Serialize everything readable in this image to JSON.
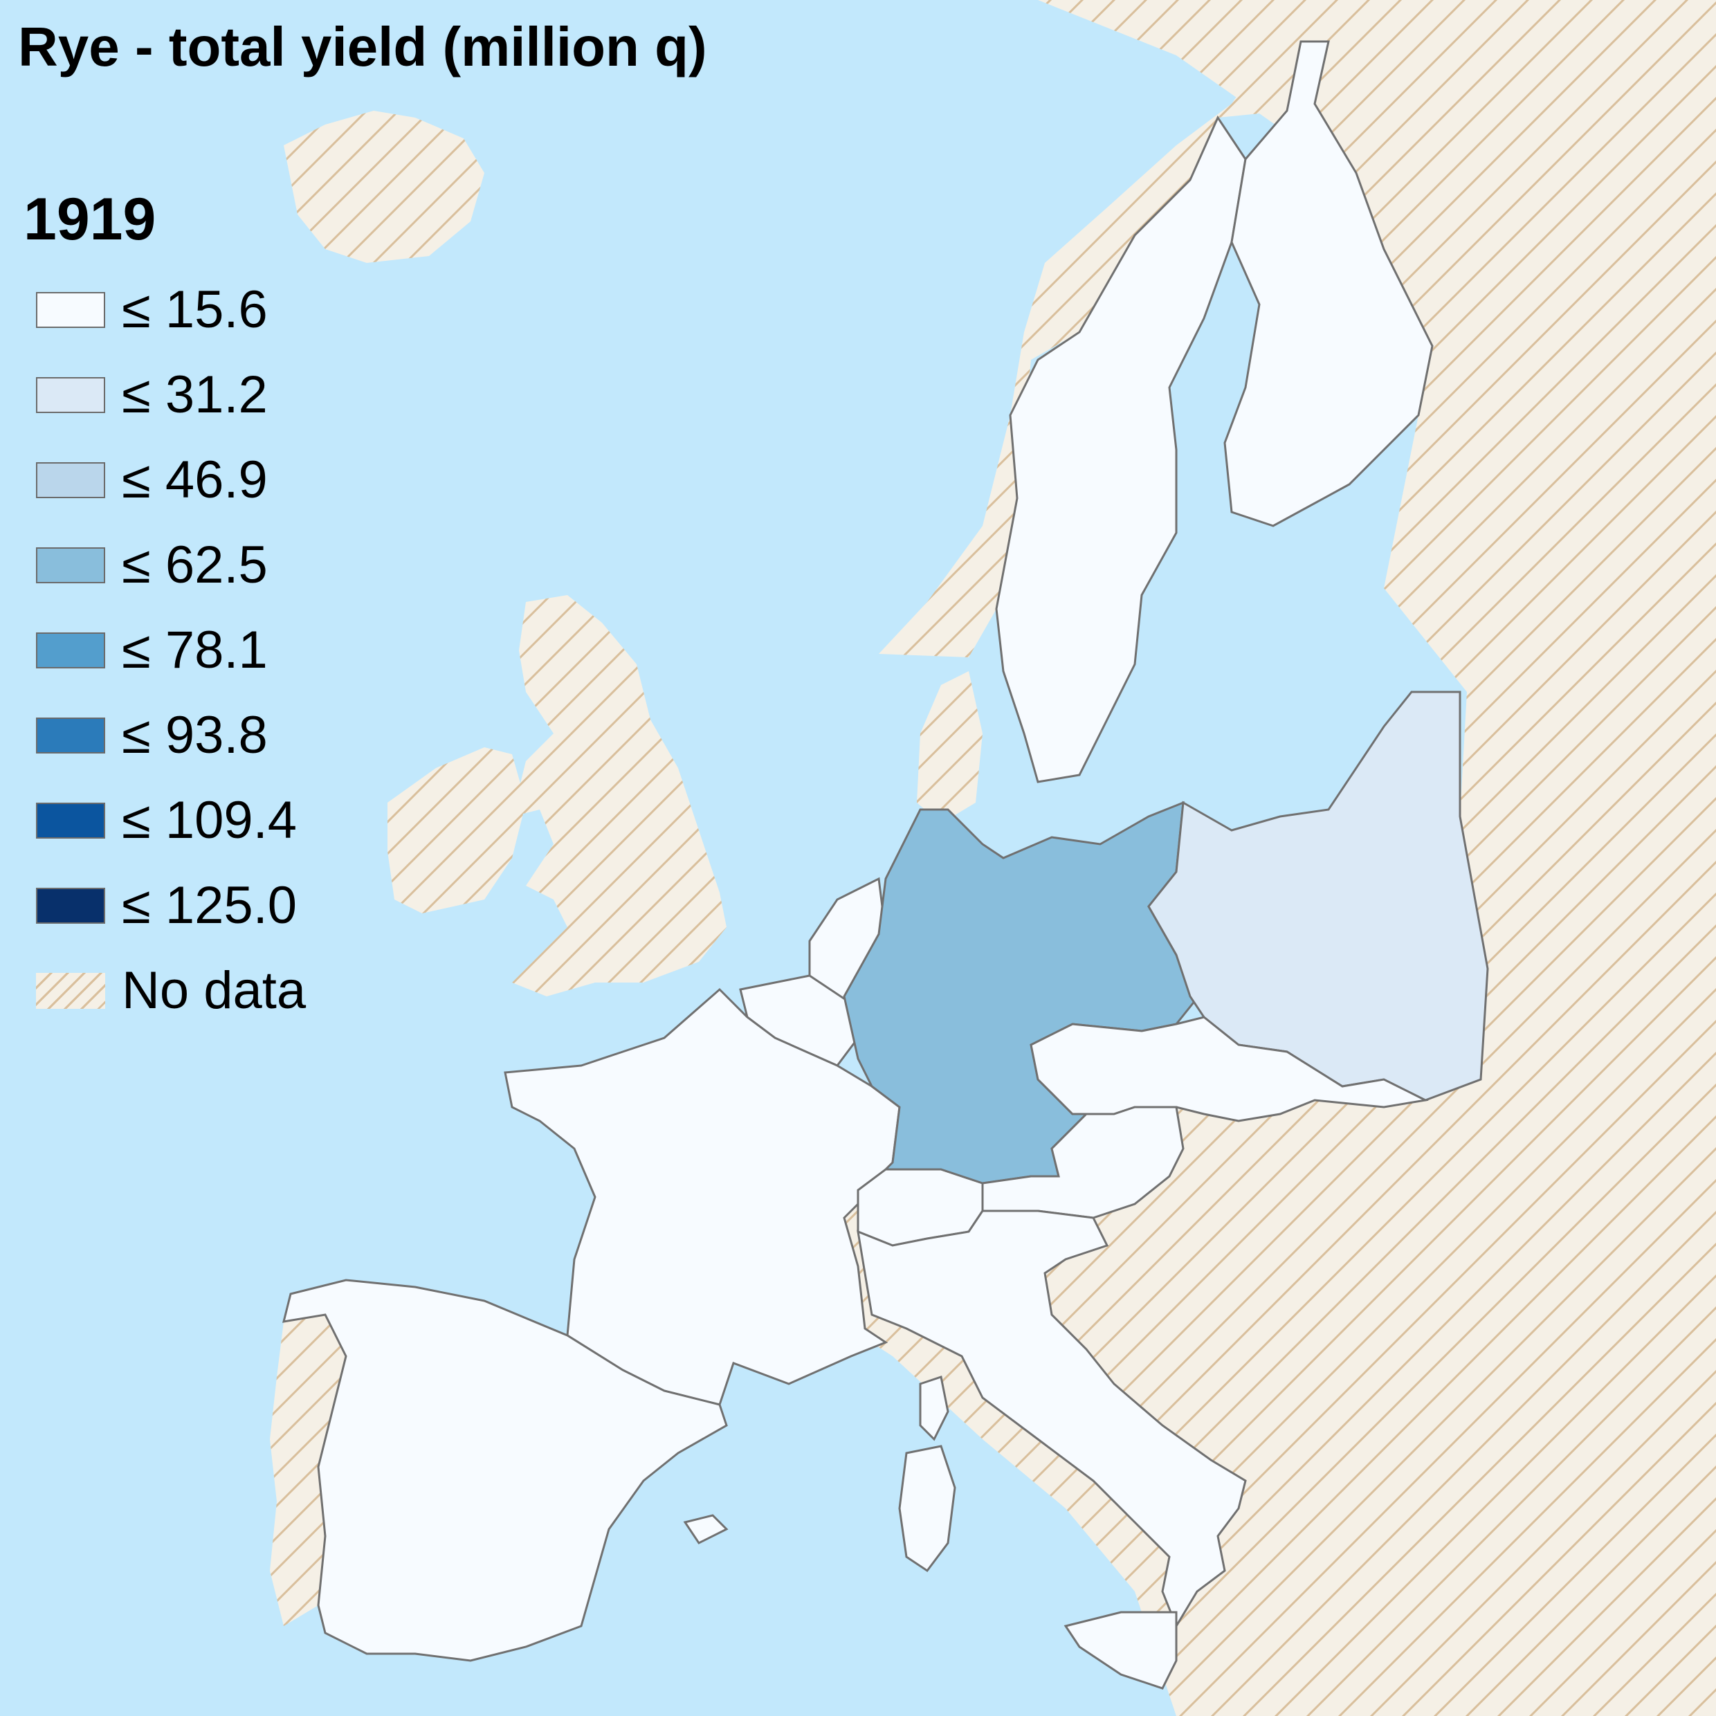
{
  "title": "Rye - total yield (million q)",
  "year": "1919",
  "colors": {
    "sea": "#c2e8fc",
    "nodata_fill": "#f5f0e6",
    "nodata_hatch": "#d9bf9c",
    "border": "#707070"
  },
  "legend": [
    {
      "label": "≤ 15.6",
      "color": "#f7fbff"
    },
    {
      "label": "≤ 31.2",
      "color": "#dbe9f6"
    },
    {
      "label": "≤ 46.9",
      "color": "#bad6eb"
    },
    {
      "label": "≤ 62.5",
      "color": "#89bedc"
    },
    {
      "label": "≤ 78.1",
      "color": "#539ecd"
    },
    {
      "label": "≤ 93.8",
      "color": "#2b7bba"
    },
    {
      "label": "≤ 109.4",
      "color": "#0b559f"
    },
    {
      "label": "≤ 125.0",
      "color": "#08306b"
    },
    {
      "label": "No data",
      "color": "hatch"
    }
  ],
  "regions": [
    {
      "name": "germany",
      "class": "≤ 62.5"
    },
    {
      "name": "poland",
      "class": "≤ 31.2"
    },
    {
      "name": "france",
      "class": "≤ 15.6"
    },
    {
      "name": "spain",
      "class": "≤ 15.6"
    },
    {
      "name": "italy",
      "class": "≤ 15.6"
    },
    {
      "name": "sweden",
      "class": "≤ 15.6"
    },
    {
      "name": "finland",
      "class": "≤ 15.6"
    },
    {
      "name": "netherlands",
      "class": "≤ 15.6"
    },
    {
      "name": "belgium",
      "class": "≤ 15.6"
    },
    {
      "name": "switzerland",
      "class": "≤ 15.6"
    },
    {
      "name": "austria",
      "class": "≤ 15.6"
    },
    {
      "name": "czechoslovakia",
      "class": "≤ 15.6"
    },
    {
      "name": "united-kingdom",
      "class": "No data"
    },
    {
      "name": "ireland",
      "class": "No data"
    },
    {
      "name": "iceland",
      "class": "No data"
    },
    {
      "name": "norway",
      "class": "No data"
    },
    {
      "name": "denmark",
      "class": "No data"
    },
    {
      "name": "portugal",
      "class": "No data"
    },
    {
      "name": "eastern-europe",
      "class": "No data"
    }
  ]
}
